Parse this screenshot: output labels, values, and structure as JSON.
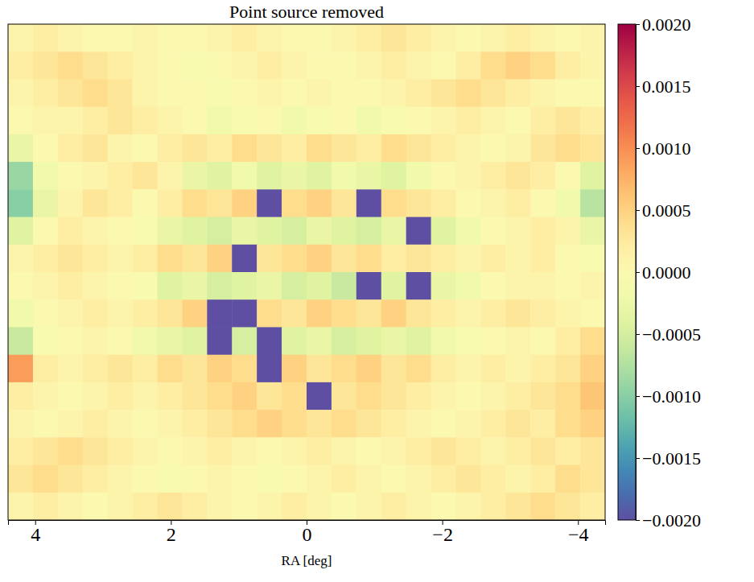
{
  "chart_data": {
    "type": "heatmap",
    "title": "Point source removed",
    "x_label": "RA [deg]",
    "xlim": [
      4.4,
      -4.4
    ],
    "xticks": [
      4,
      2,
      0,
      {
        "value": -2,
        "label": "−2"
      },
      {
        "value": -4,
        "label": "−4"
      }
    ],
    "tick_labels": "x",
    "color": "Spectral_r",
    "clim": [
      -0.002,
      0.002
    ],
    "cticks": [
      {
        "value": -0.002,
        "label": "−0.0020"
      },
      {
        "value": -0.0015,
        "label": "−0.0015"
      },
      {
        "value": -0.001,
        "label": "−0.0010"
      },
      {
        "value": -0.0005,
        "label": "−0.0005"
      },
      {
        "value": 0,
        "label": "0.0000"
      },
      0.0005,
      {
        "value": 0.001,
        "label": "0.0010"
      },
      0.0015,
      {
        "value": 0.002,
        "label": "0.0020"
      }
    ],
    "cells": [
      [
        0.0001,
        0.0002,
        0.0001,
        0,
        0,
        0.0001,
        0,
        0,
        0.0001,
        0.0002,
        0.0001,
        0,
        0,
        0.0001,
        0.0002,
        0.0003,
        0.0002,
        0.0001,
        0,
        0.0001,
        0.0002,
        0.0001,
        0,
        0.0001
      ],
      [
        0.0002,
        0.0003,
        0.0004,
        0.0003,
        0.0002,
        0.0001,
        0,
        -0.0001,
        0,
        0.0001,
        0.0002,
        0.0001,
        0,
        0,
        0.0001,
        0.0002,
        0.0001,
        0,
        0.0002,
        0.0004,
        0.0005,
        0.0004,
        0.0002,
        0.0001
      ],
      [
        0.0001,
        0.0002,
        0.0003,
        0.0004,
        0.0003,
        0.0001,
        0,
        0,
        -0.0001,
        0,
        0.0001,
        0,
        0.0001,
        0,
        0,
        0.0001,
        0.0002,
        0.0003,
        0.0004,
        0.0003,
        0.0002,
        0.0001,
        0,
        0
      ],
      [
        0,
        0.0001,
        0.0001,
        0.0002,
        0.0003,
        0.0002,
        0.0001,
        0,
        -0.0002,
        -0.0001,
        0,
        -0.0002,
        -0.0001,
        0,
        -0.0002,
        -0.0001,
        0,
        0.0001,
        0.0002,
        0.0001,
        0,
        0.0002,
        0.0003,
        0.0002
      ],
      [
        -0.0003,
        0,
        0.0002,
        0.0003,
        0.0001,
        0,
        0.0002,
        0.0003,
        0.0002,
        0.0004,
        0.0003,
        0.0002,
        0.0004,
        0.0003,
        0.0002,
        0.0004,
        0.0003,
        0.0002,
        0.0001,
        0,
        0.0001,
        0.0003,
        0.0004,
        0.0003
      ],
      [
        -0.0009,
        -0.0002,
        0,
        0.0001,
        0.0002,
        0.0003,
        0.0001,
        -0.0003,
        -0.0004,
        -0.0002,
        -0.0004,
        -0.0003,
        -0.0004,
        -0.0002,
        -0.0003,
        -0.0004,
        -0.0002,
        0,
        0.0001,
        0.0002,
        0.0003,
        0.0002,
        0,
        -0.0004
      ],
      [
        -0.001,
        -0.0003,
        0.0001,
        0.0003,
        0.0002,
        0,
        0.0002,
        0.0004,
        0.0003,
        0.0005,
        -0.002,
        0.0004,
        0.0005,
        0.0003,
        -0.002,
        0.0004,
        0.0003,
        0.0002,
        0,
        0.0001,
        0.0002,
        0,
        -0.0002,
        -0.0007
      ],
      [
        -0.0004,
        0,
        0.0002,
        0.0001,
        0,
        -0.0001,
        -0.0003,
        -0.0004,
        -0.0005,
        -0.0003,
        -0.0004,
        -0.0005,
        -0.0003,
        -0.0004,
        -0.0005,
        -0.0003,
        -0.002,
        -0.0004,
        -0.0002,
        0,
        0.0001,
        0.0002,
        0.0001,
        -0.0003
      ],
      [
        0.0001,
        0.0002,
        0.0003,
        0.0002,
        0.0001,
        0.0002,
        0.0004,
        0.0003,
        0.0005,
        -0.002,
        0.0003,
        0.0004,
        0.0005,
        0.0003,
        0.0004,
        0.0002,
        0.0003,
        0.0002,
        0.0001,
        0.0002,
        0.0001,
        0.0002,
        0,
        -0.0001
      ],
      [
        0,
        0.0001,
        0.0002,
        0.0001,
        0,
        -0.0001,
        -0.0004,
        -0.0003,
        -0.0005,
        -0.0004,
        -0.0003,
        -0.0005,
        -0.0004,
        -0.0006,
        -0.002,
        -0.0004,
        -0.002,
        -0.0003,
        -0.0002,
        0,
        0.0001,
        0.0001,
        0,
        0.0001
      ],
      [
        -0.0002,
        0,
        0.0001,
        0.0002,
        0.0001,
        0.0002,
        0.0003,
        0.0005,
        -0.002,
        -0.002,
        0.0004,
        0.0003,
        0.0005,
        0.0004,
        0.0003,
        0.0005,
        0.0003,
        0.0002,
        0.0001,
        0.0002,
        0.0003,
        0.0002,
        0.0001,
        0
      ],
      [
        -0.0006,
        -0.0001,
        0,
        0.0001,
        0,
        -0.0002,
        -0.0003,
        -0.0004,
        -0.002,
        -0.0005,
        -0.002,
        -0.0004,
        -0.0003,
        -0.0005,
        -0.0004,
        -0.0003,
        -0.0004,
        -0.0002,
        -0.0001,
        0,
        0.0001,
        0,
        0.0002,
        0.0004
      ],
      [
        0.0009,
        0.0002,
        0.0001,
        0.0002,
        0.0003,
        0.0002,
        0.0004,
        0.0003,
        0.0005,
        0.0004,
        -0.002,
        0.0005,
        0.0003,
        0.0004,
        0.0005,
        0.0003,
        0.0004,
        0.0002,
        0.0001,
        0.0002,
        0.0001,
        0.0002,
        0.0003,
        0.0005
      ],
      [
        0.0002,
        0.0001,
        0,
        0.0001,
        0.0002,
        0.0001,
        0.0002,
        0.0003,
        0.0004,
        0.0005,
        0.0003,
        0.0004,
        -0.002,
        0.0003,
        0.0004,
        0.0003,
        0.0002,
        0.0001,
        0,
        0.0001,
        0.0002,
        0.0003,
        0.0004,
        0.0006
      ],
      [
        0.0001,
        0,
        0.0001,
        0.0002,
        0.0001,
        0,
        0.0001,
        0.0002,
        0.0003,
        0.0004,
        0.0005,
        0.0004,
        0.0003,
        0.0004,
        0.0003,
        0.0002,
        0.0001,
        0,
        0.0001,
        0.0002,
        0.0003,
        0.0002,
        0.0004,
        0.0005
      ],
      [
        0.0002,
        0.0003,
        0.0004,
        0.0003,
        0.0002,
        0.0001,
        0,
        0.0001,
        0.0002,
        0.0001,
        0,
        0.0001,
        0.0002,
        0.0001,
        0,
        0.0001,
        0.0002,
        0.0003,
        0.0002,
        0.0001,
        0.0002,
        0.0003,
        0.0002,
        0.0003
      ],
      [
        0.0003,
        0.0004,
        0.0003,
        0.0002,
        0.0001,
        0,
        -0.0001,
        0,
        0.0001,
        0,
        -0.0001,
        0,
        0.0001,
        0.0002,
        0.0001,
        0,
        0.0001,
        0.0002,
        0.0003,
        0.0002,
        0.0001,
        0.0002,
        0.0004,
        0.0003
      ],
      [
        0.0001,
        0.0002,
        0.0001,
        0,
        0.0001,
        0.0002,
        0.0003,
        0.0002,
        0.0001,
        0,
        0.0001,
        0.0002,
        0.0001,
        0,
        0.0001,
        0.0002,
        0.0001,
        0,
        0.0001,
        0.0002,
        0.0003,
        0.0004,
        0.0003,
        0.0002
      ]
    ]
  }
}
